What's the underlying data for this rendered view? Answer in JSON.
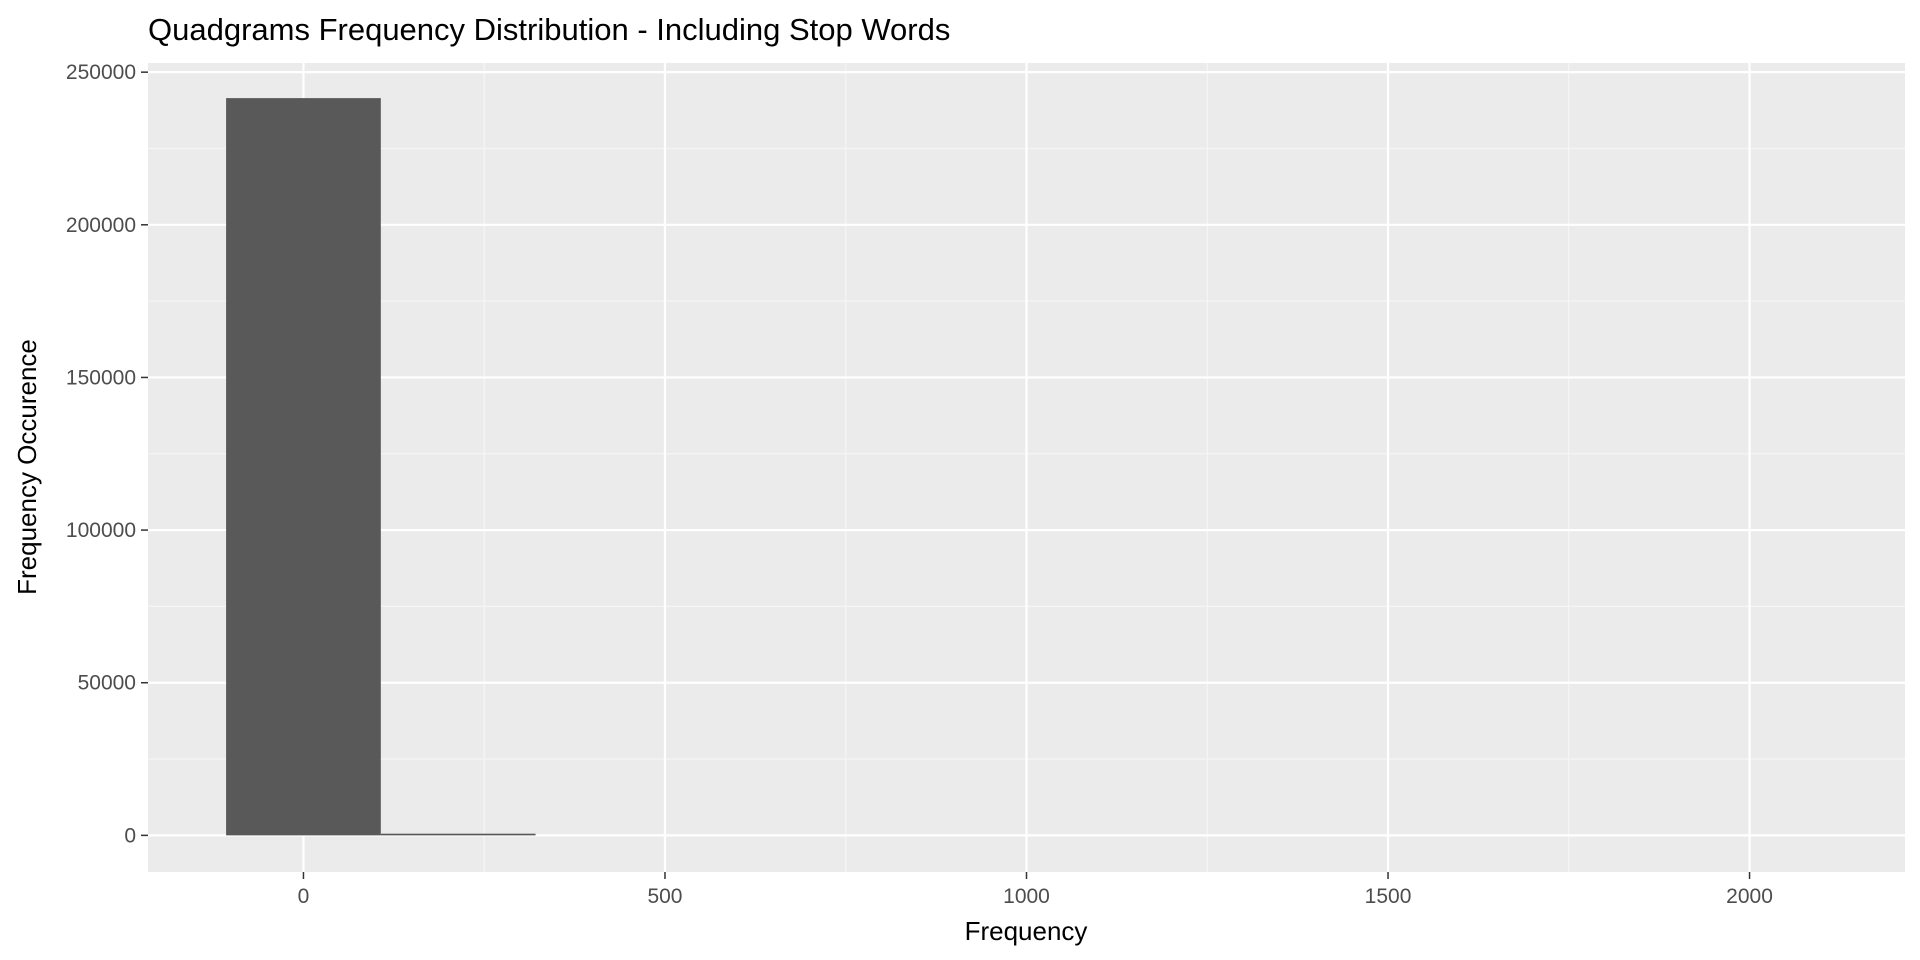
{
  "chart_data": {
    "type": "bar",
    "title": "Quadgrams Frequency Distribution - Including Stop Words",
    "xlabel": "Frequency",
    "ylabel": "Frequency Occurence",
    "xlim": [
      -215,
      2215
    ],
    "ylim": [
      -12000,
      253000
    ],
    "x_ticks": [
      0,
      500,
      1000,
      1500,
      2000
    ],
    "y_ticks": [
      0,
      50000,
      100000,
      150000,
      200000,
      250000
    ],
    "bins": [
      {
        "x0": -107,
        "x1": 107,
        "value": 241500
      },
      {
        "x0": 107,
        "x1": 321,
        "value": 550
      }
    ],
    "grid": true,
    "legend": "none",
    "colors": {
      "panel": "#ebebeb",
      "grid_major": "#ffffff",
      "grid_minor": "#f5f5f5",
      "bar": "#595959",
      "tick": "#333333"
    }
  }
}
